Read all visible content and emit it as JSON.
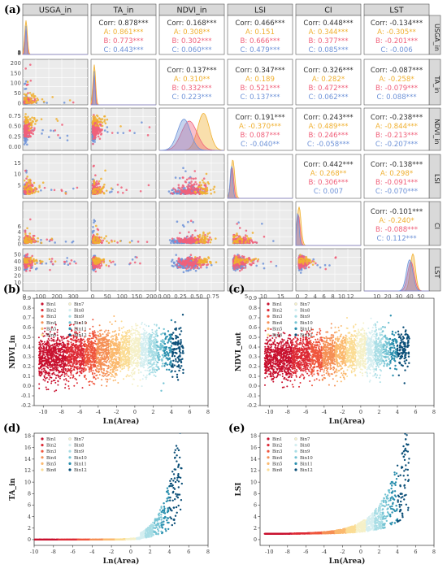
{
  "chart_data": [
    {
      "type": "scatter-matrix",
      "panel_label": "(a)",
      "variables": [
        "USGA_in",
        "TA_in",
        "NDVI_in",
        "LSI",
        "CI",
        "LST"
      ],
      "groups": [
        {
          "name": "A",
          "color": "#f0b030"
        },
        {
          "name": "B",
          "color": "#f0607a"
        },
        {
          "name": "C",
          "color": "#6f93d8"
        }
      ],
      "axis_ranges": {
        "USGA_in": [
          0,
          380
        ],
        "TA_in": [
          0,
          210
        ],
        "NDVI_in": [
          -0.05,
          0.9
        ],
        "LSI": [
          0,
          18
        ],
        "CI": [
          0,
          14
        ],
        "LST": [
          0,
          56
        ]
      },
      "x_ticks": {
        "USGA_in": [
          "0",
          "100",
          "200",
          "300"
        ],
        "TA_in": [
          "0",
          "50",
          "100",
          "150",
          "200"
        ],
        "NDVI_in": [
          "0.00",
          "0.25",
          "0.50",
          "0.75"
        ],
        "LSI": [
          "5",
          "10",
          "15"
        ],
        "CI": [
          "0",
          "2",
          "4",
          "6",
          "8",
          "10",
          "12"
        ],
        "LST": [
          "10",
          "20",
          "30",
          "40",
          "50"
        ]
      },
      "y_ticks": {
        "USGA_in": [
          "0",
          "1",
          "2",
          "3",
          "4",
          "5"
        ],
        "TA_in": [
          "0",
          "50",
          "100",
          "150",
          "200"
        ],
        "NDVI_in": [
          "0.00",
          "0.25",
          "0.50",
          "0.75"
        ],
        "LSI": [
          "5",
          "10",
          "15"
        ],
        "CI": [
          "0",
          "2",
          "4",
          "6"
        ],
        "LST": [
          "10",
          "20",
          "30",
          "40",
          "50"
        ]
      },
      "correlations": [
        {
          "row": 0,
          "col": 1,
          "values": [
            "Corr: 0.878***",
            "A: 0.861***",
            "B: 0.773***",
            "C: 0.443***"
          ]
        },
        {
          "row": 0,
          "col": 2,
          "values": [
            "Corr: 0.168***",
            "A: 0.308**",
            "B: 0.302***",
            "C: 0.060***"
          ]
        },
        {
          "row": 0,
          "col": 3,
          "values": [
            "Corr: 0.466***",
            "A: 0.151",
            "B: 0.666***",
            "C: 0.479***"
          ]
        },
        {
          "row": 0,
          "col": 4,
          "values": [
            "Corr: 0.448***",
            "A: 0.344***",
            "B: 0.377***",
            "C: 0.085***"
          ]
        },
        {
          "row": 0,
          "col": 5,
          "values": [
            "Corr: -0.134***",
            "A: -0.305**",
            "B: -0.201***",
            "C: -0.006"
          ]
        },
        {
          "row": 1,
          "col": 2,
          "values": [
            "Corr: 0.137***",
            "A: 0.310**",
            "B: 0.332***",
            "C: 0.223***"
          ]
        },
        {
          "row": 1,
          "col": 3,
          "values": [
            "Corr: 0.347***",
            "A: 0.189",
            "B: 0.521***",
            "C: 0.137***"
          ]
        },
        {
          "row": 1,
          "col": 4,
          "values": [
            "Corr: 0.326***",
            "A: 0.282*",
            "B: 0.472***",
            "C: 0.062***"
          ]
        },
        {
          "row": 1,
          "col": 5,
          "values": [
            "Corr: -0.087***",
            "A: -0.258*",
            "B: -0.079***",
            "C: 0.088***"
          ]
        },
        {
          "row": 2,
          "col": 3,
          "values": [
            "Corr: 0.191***",
            "A: -0.370***",
            "B: 0.087***",
            "C: -0.040**"
          ]
        },
        {
          "row": 2,
          "col": 4,
          "values": [
            "Corr: 0.243***",
            "A: 0.489***",
            "B: 0.246***",
            "C: -0.058***"
          ]
        },
        {
          "row": 2,
          "col": 5,
          "values": [
            "Corr: -0.238***",
            "A: -0.844***",
            "B: -0.213***",
            "C: -0.207***"
          ]
        },
        {
          "row": 3,
          "col": 4,
          "values": [
            "Corr: 0.442***",
            "A: 0.268**",
            "B: 0.306***",
            "C: 0.007"
          ]
        },
        {
          "row": 3,
          "col": 5,
          "values": [
            "Corr: -0.138***",
            "A: 0.298*",
            "B: -0.091***",
            "C: -0.070***"
          ]
        },
        {
          "row": 4,
          "col": 5,
          "values": [
            "Corr: -0.101***",
            "A: -0.240*",
            "B: -0.088***",
            "C: 0.112***"
          ]
        }
      ]
    },
    {
      "type": "scatter",
      "panel_label": "(b)",
      "xlabel": "Ln(Area)",
      "ylabel": "NDVI_in",
      "xlim": [
        -11,
        8
      ],
      "ylim": [
        -0.2,
        0.9
      ],
      "x_ticks": [
        -10,
        -8,
        -6,
        -4,
        -2,
        0,
        2,
        4,
        6,
        8
      ],
      "y_ticks": [
        -0.2,
        -0.1,
        0.0,
        0.1,
        0.2,
        0.3,
        0.4,
        0.5,
        0.6,
        0.7,
        0.8,
        0.9
      ],
      "curve": "ndvi_in"
    },
    {
      "type": "scatter",
      "panel_label": "(c)",
      "xlabel": "Ln(Area)",
      "ylabel": "NDVI_out",
      "xlim": [
        -11,
        8
      ],
      "ylim": [
        -0.2,
        0.9
      ],
      "x_ticks": [
        -10,
        -8,
        -6,
        -4,
        -2,
        0,
        2,
        4,
        6,
        8
      ],
      "y_ticks": [
        -0.2,
        -0.1,
        0.0,
        0.1,
        0.2,
        0.3,
        0.4,
        0.5,
        0.6,
        0.7,
        0.8,
        0.9
      ],
      "curve": "ndvi_out"
    },
    {
      "type": "scatter",
      "panel_label": "(d)",
      "xlabel": "Ln(Area)",
      "ylabel": "TA_in",
      "xlim": [
        -10,
        8
      ],
      "ylim": [
        -1,
        18.5
      ],
      "x_ticks": [
        -10,
        -8,
        -6,
        -4,
        -2,
        0,
        2,
        4,
        6,
        8
      ],
      "y_ticks": [
        0,
        2,
        4,
        6,
        8,
        10,
        12,
        14,
        16,
        18
      ],
      "curve": "ta"
    },
    {
      "type": "scatter",
      "panel_label": "(e)",
      "xlabel": "Ln(Area)",
      "ylabel": "LSI",
      "xlim": [
        -11,
        8
      ],
      "ylim": [
        -1,
        18.5
      ],
      "x_ticks": [
        -10,
        -8,
        -6,
        -4,
        -2,
        0,
        2,
        4,
        6,
        8
      ],
      "y_ticks": [
        0,
        2,
        4,
        6,
        8,
        10,
        12,
        14,
        16,
        18
      ],
      "curve": "lsi"
    }
  ],
  "bins": [
    {
      "name": "Bin1",
      "color": "#c8102e",
      "xmin": -10.5,
      "xmax": -7.5
    },
    {
      "name": "Bin2",
      "color": "#dd2a35",
      "xmin": -7.5,
      "xmax": -5.5
    },
    {
      "name": "Bin3",
      "color": "#ef553c",
      "xmin": -5.5,
      "xmax": -4.2
    },
    {
      "name": "Bin4",
      "color": "#f58f55",
      "xmin": -4.2,
      "xmax": -2.8
    },
    {
      "name": "Bin5",
      "color": "#fbb96e",
      "xmin": -2.8,
      "xmax": -1.6
    },
    {
      "name": "Bin6",
      "color": "#fbdc94",
      "xmin": -1.6,
      "xmax": -0.5
    },
    {
      "name": "Bin7",
      "color": "#f5f0c8",
      "xmin": -0.5,
      "xmax": 0.6
    },
    {
      "name": "Bin8",
      "color": "#d4eef0",
      "xmin": 0.6,
      "xmax": 1.5
    },
    {
      "name": "Bin9",
      "color": "#a8dde5",
      "xmin": 1.5,
      "xmax": 2.4
    },
    {
      "name": "Bin10",
      "color": "#74c3d3",
      "xmin": 2.4,
      "xmax": 3.2
    },
    {
      "name": "Bin11",
      "color": "#2a8fae",
      "xmin": 3.2,
      "xmax": 4.0
    },
    {
      "name": "Bin12",
      "color": "#0b4f78",
      "xmin": 4.0,
      "xmax": 5.3
    }
  ]
}
